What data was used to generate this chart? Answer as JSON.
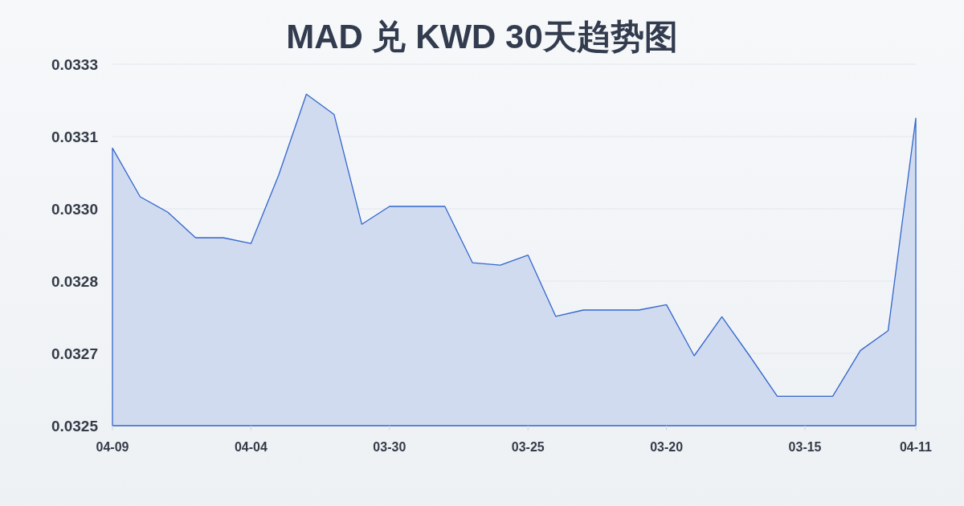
{
  "chart_data": {
    "type": "area",
    "title": "MAD 兑 KWD 30天趋势图",
    "categories": [
      "04-09",
      null,
      null,
      null,
      null,
      "04-04",
      null,
      null,
      null,
      null,
      "03-30",
      null,
      null,
      null,
      null,
      "03-25",
      null,
      null,
      null,
      null,
      "03-20",
      null,
      null,
      null,
      null,
      "03-15",
      null,
      null,
      null,
      "04-11"
    ],
    "values": [
      0.033076,
      0.032975,
      0.032943,
      0.03289,
      0.03289,
      0.032878,
      0.03302,
      0.033188,
      0.033146,
      0.032918,
      0.032955,
      0.032955,
      0.032955,
      0.032838,
      0.032833,
      0.032854,
      0.032727,
      0.03274,
      0.03274,
      0.03274,
      0.032751,
      0.032645,
      0.032726,
      0.032645,
      0.032561,
      0.032561,
      0.032561,
      0.032656,
      0.032697,
      0.033138
    ],
    "color": "#3366cc",
    "ylim": [
      0.0325,
      0.03325
    ],
    "yticks": [
      0.0325,
      {
        "value": 0.03265,
        "label": "0.0327"
      },
      0.0328,
      {
        "value": 0.03295,
        "label": "0.0330"
      },
      0.0331,
      {
        "value": 0.03325,
        "label": "0.0333"
      }
    ],
    "grid": "y"
  }
}
